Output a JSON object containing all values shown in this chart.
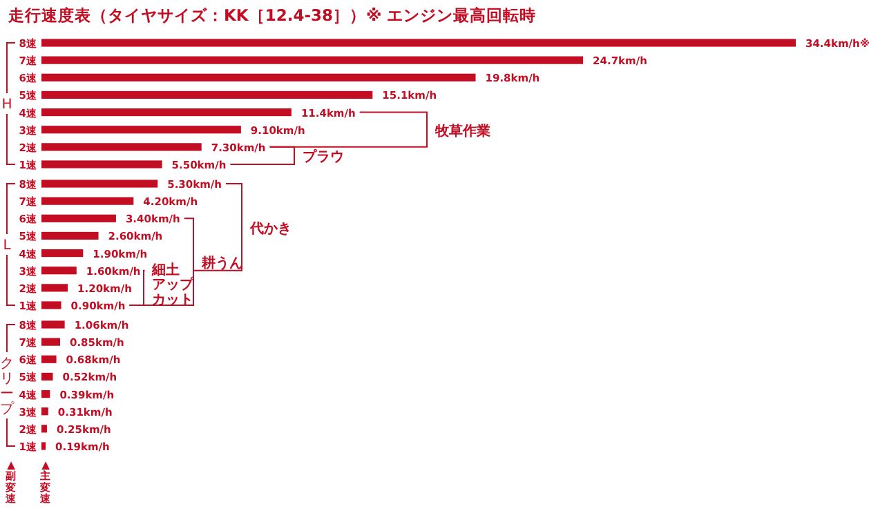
{
  "chart_data": {
    "type": "bar",
    "orientation": "horizontal",
    "title": "走行速度表（タイヤサイズ：KK［12.4-38］）※ エンジン最高回転時",
    "categories": [
      "8速",
      "7速",
      "6速",
      "5速",
      "4速",
      "3速",
      "2速",
      "1速",
      "8速",
      "7速",
      "6速",
      "5速",
      "4速",
      "3速",
      "2速",
      "1速",
      "8速",
      "7速",
      "6速",
      "5速",
      "4速",
      "3速",
      "2速",
      "1速"
    ],
    "values": [
      34.4,
      24.7,
      19.8,
      15.1,
      11.4,
      9.1,
      7.3,
      5.5,
      5.3,
      4.2,
      3.4,
      2.6,
      1.9,
      1.6,
      1.2,
      0.9,
      1.06,
      0.85,
      0.68,
      0.52,
      0.39,
      0.31,
      0.25,
      0.19
    ],
    "value_labels": [
      "34.4km/h※",
      "24.7km/h",
      "19.8km/h",
      "15.1km/h",
      "11.4km/h",
      "9.10km/h",
      "7.30km/h",
      "5.50km/h",
      "5.30km/h",
      "4.20km/h",
      "3.40km/h",
      "2.60km/h",
      "1.90km/h",
      "1.60km/h",
      "1.20km/h",
      "0.90km/h",
      "1.06km/h",
      "0.85km/h",
      "0.68km/h",
      "0.52km/h",
      "0.39km/h",
      "0.31km/h",
      "0.25km/h",
      "0.19km/h"
    ],
    "color": "#c30d23",
    "annotations": [
      "H",
      "L",
      "クリープ",
      "牧草作業",
      "プラウ",
      "代かき",
      "耕うん",
      "細土アップカット",
      "▲副変速",
      "▲主変速"
    ]
  }
}
